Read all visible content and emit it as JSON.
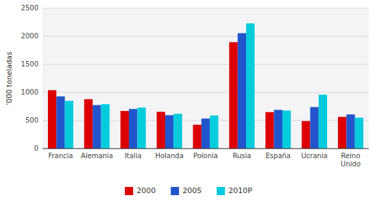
{
  "chart_data": {
    "type": "bar",
    "categories": [
      "Francia",
      "Alemania",
      "Italia",
      "Holanda",
      "Polonia",
      "Rusia",
      "España",
      "Ucrania",
      "Reino\nUnido"
    ],
    "series": [
      {
        "name": "2000",
        "color": "#dd0000",
        "values": [
          1040,
          880,
          670,
          655,
          425,
          1895,
          650,
          490,
          565
        ]
      },
      {
        "name": "2005",
        "color": "#2255cc",
        "values": [
          930,
          775,
          705,
          595,
          535,
          2055,
          690,
          740,
          608
        ]
      },
      {
        "name": "2010P",
        "color": "#00ccdd",
        "values": [
          850,
          790,
          730,
          620,
          590,
          2230,
          678,
          960,
          552
        ]
      }
    ],
    "ylabel": "'000 toneladas",
    "ylim": [
      0,
      2500
    ],
    "yticks": [
      0,
      500,
      1000,
      1500,
      2000,
      2500
    ],
    "grid": true,
    "legend": "bottom"
  }
}
